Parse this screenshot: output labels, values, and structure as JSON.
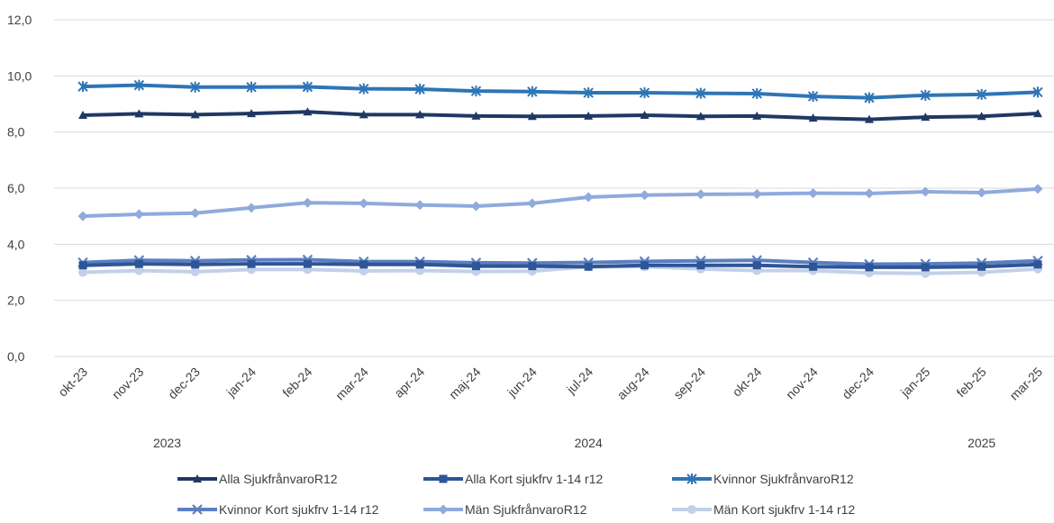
{
  "chart_data": {
    "type": "line",
    "title": "",
    "xlabel": "",
    "ylabel": "",
    "ylim": [
      0,
      12
    ],
    "yticks": [
      "0,0",
      "2,0",
      "4,0",
      "6,0",
      "8,0",
      "10,0",
      "12,0"
    ],
    "grid": true,
    "legend_position": "bottom",
    "categories": [
      "okt-23",
      "nov-23",
      "dec-23",
      "jan-24",
      "feb-24",
      "mar-24",
      "apr-24",
      "maj-24",
      "jun-24",
      "jul-24",
      "aug-24",
      "sep-24",
      "okt-24",
      "nov-24",
      "dec-24",
      "jan-25",
      "feb-25",
      "mar-25"
    ],
    "year_labels": [
      {
        "label": "2023",
        "category_index": 1.5
      },
      {
        "label": "2024",
        "category_index": 9
      },
      {
        "label": "2025",
        "category_index": 16
      }
    ],
    "series": [
      {
        "name": "Alla SjukfrånvaroR12",
        "color": "#1f3864",
        "marker": "triangle",
        "values": [
          8.6,
          8.65,
          8.62,
          8.66,
          8.72,
          8.62,
          8.62,
          8.57,
          8.56,
          8.57,
          8.6,
          8.56,
          8.57,
          8.5,
          8.45,
          8.53,
          8.56,
          8.66
        ]
      },
      {
        "name": "Alla Kort sjukfrv 1-14 r12",
        "color": "#2e5597",
        "marker": "square",
        "values": [
          3.25,
          3.3,
          3.28,
          3.3,
          3.3,
          3.28,
          3.28,
          3.22,
          3.22,
          3.2,
          3.25,
          3.25,
          3.25,
          3.2,
          3.18,
          3.18,
          3.2,
          3.28
        ]
      },
      {
        "name": "Kvinnor SjukfrånvaroR12",
        "color": "#2e75b6",
        "marker": "star",
        "values": [
          9.62,
          9.67,
          9.6,
          9.6,
          9.61,
          9.54,
          9.53,
          9.46,
          9.44,
          9.4,
          9.4,
          9.38,
          9.37,
          9.27,
          9.22,
          9.31,
          9.34,
          9.42
        ]
      },
      {
        "name": "Kvinnor Kort sjukfrv 1-14 r12",
        "color": "#5b7fc0",
        "marker": "x",
        "values": [
          3.35,
          3.43,
          3.41,
          3.44,
          3.45,
          3.38,
          3.38,
          3.34,
          3.33,
          3.35,
          3.39,
          3.41,
          3.43,
          3.35,
          3.29,
          3.3,
          3.33,
          3.41
        ]
      },
      {
        "name": "Män SjukfrånvaroR12",
        "color": "#8faadc",
        "marker": "diamond",
        "values": [
          5.0,
          5.07,
          5.11,
          5.3,
          5.48,
          5.46,
          5.4,
          5.36,
          5.46,
          5.68,
          5.75,
          5.78,
          5.79,
          5.82,
          5.81,
          5.87,
          5.84,
          5.97
        ]
      },
      {
        "name": "Män Kort sjukfrv 1-14 r12",
        "color": "#c3d0ea",
        "marker": "circle",
        "values": [
          3.0,
          3.06,
          3.02,
          3.1,
          3.1,
          3.05,
          3.06,
          3.03,
          3.04,
          3.2,
          3.2,
          3.12,
          3.06,
          3.06,
          2.98,
          2.96,
          3.0,
          3.12
        ]
      }
    ]
  }
}
